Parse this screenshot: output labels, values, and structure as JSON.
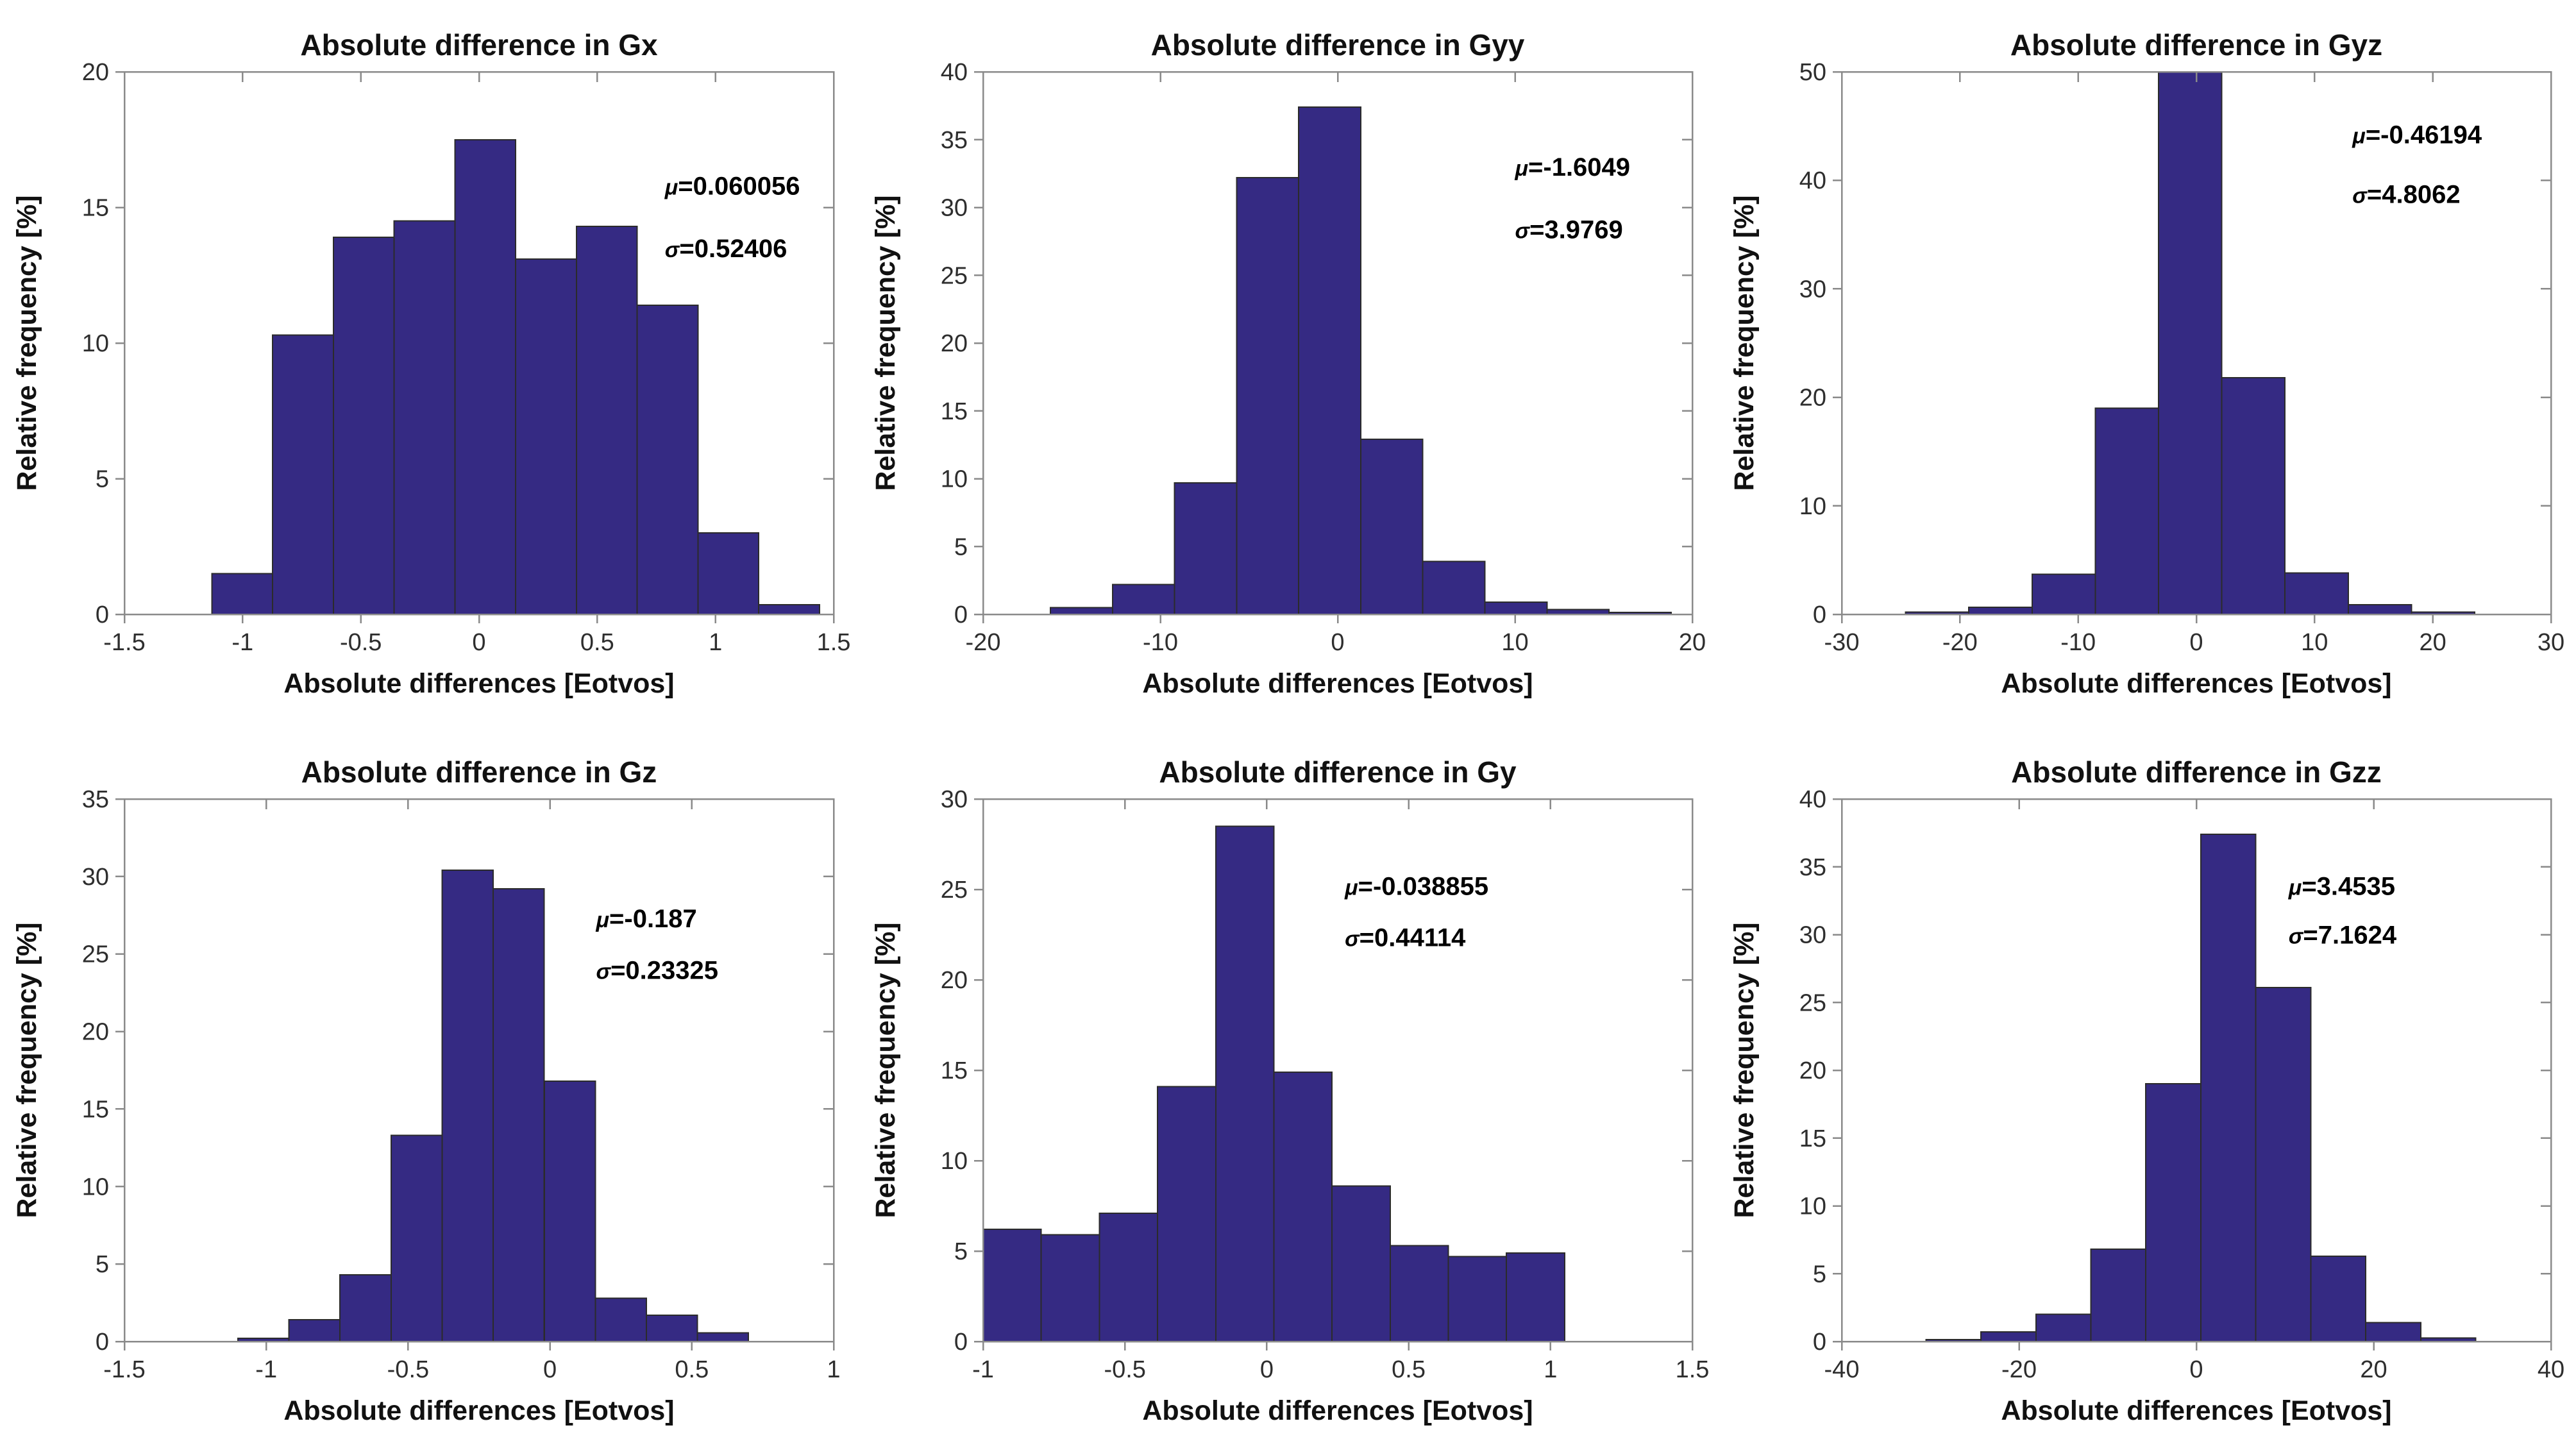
{
  "figure": {
    "background": "#ffffff",
    "grid": {
      "rows": 2,
      "cols": 3
    }
  },
  "colors": {
    "bar_fill": "#352a83",
    "bar_edge": "#2b2b2b",
    "frame": "#8a8a8a",
    "title_text": "#111111",
    "label_text": "#111111",
    "tick_text": "#2e2e2e",
    "annotation_text": "#000000"
  },
  "chart_data": [
    {
      "id": "gx",
      "type": "bar",
      "title": "Absolute difference in Gx",
      "xlabel": "Absolute differences [Eotvos]",
      "ylabel": "Relative frequency  [%]",
      "mu_greek": "μ",
      "mu_text": "=0.060056",
      "sigma_greek": "σ",
      "sigma_text": "=0.52406",
      "xlim": [
        -1.5,
        1.5
      ],
      "ylim": [
        0,
        20
      ],
      "xticks": [
        -1.5,
        -1,
        -0.5,
        0,
        0.5,
        1,
        1.5
      ],
      "xtick_labels": [
        "-1.5",
        "-1",
        "-0.5",
        "0",
        "0.5",
        "1",
        "1.5"
      ],
      "yticks": [
        0,
        5,
        10,
        15,
        20
      ],
      "ytick_labels": [
        "0",
        "5",
        "10",
        "15",
        "20"
      ],
      "bins": {
        "start": -1.13,
        "width": 0.257
      },
      "values": [
        1.5,
        10.3,
        13.9,
        14.5,
        17.5,
        13.1,
        14.3,
        11.4,
        3.0,
        0.35
      ],
      "legend": "none",
      "grid_on": false,
      "annotation_pos": {
        "x_frac": 0.762,
        "mu_y_frac": 0.21,
        "sigma_y_frac": 0.325
      }
    },
    {
      "id": "gyy",
      "type": "bar",
      "title": "Absolute difference in Gyy",
      "xlabel": "Absolute differences [Eotvos]",
      "ylabel": "Relative frequency  [%]",
      "mu_greek": "μ",
      "mu_text": "=-1.6049",
      "sigma_greek": "σ",
      "sigma_text": "=3.9769",
      "xlim": [
        -20,
        20
      ],
      "ylim": [
        0,
        40
      ],
      "xticks": [
        -20,
        -10,
        0,
        10,
        20
      ],
      "xtick_labels": [
        "-20",
        "-10",
        "0",
        "10",
        "20"
      ],
      "yticks": [
        0,
        5,
        10,
        15,
        20,
        25,
        30,
        35,
        40
      ],
      "ytick_labels": [
        "0",
        "5",
        "10",
        "15",
        "20",
        "25",
        "30",
        "35",
        "40"
      ],
      "bins": {
        "start": -16.2,
        "width": 3.5
      },
      "values": [
        0.5,
        2.2,
        9.7,
        32.2,
        37.4,
        12.9,
        3.9,
        0.9,
        0.35,
        0.15
      ],
      "legend": "none",
      "grid_on": false,
      "annotation_pos": {
        "x_frac": 0.75,
        "mu_y_frac": 0.175,
        "sigma_y_frac": 0.29
      }
    },
    {
      "id": "gyz",
      "type": "bar",
      "title": "Absolute difference in Gyz",
      "xlabel": "Absolute differences [Eotvos]",
      "ylabel": "Relative frequency  [%]",
      "mu_greek": "μ",
      "mu_text": "=-0.46194",
      "sigma_greek": "σ",
      "sigma_text": "=4.8062",
      "xlim": [
        -30,
        30
      ],
      "ylim": [
        0,
        50
      ],
      "xticks": [
        -30,
        -20,
        -10,
        0,
        10,
        20,
        30
      ],
      "xtick_labels": [
        "-30",
        "-20",
        "-10",
        "0",
        "10",
        "20",
        "30"
      ],
      "yticks": [
        0,
        10,
        20,
        30,
        40,
        50
      ],
      "ytick_labels": [
        "0",
        "10",
        "20",
        "30",
        "40",
        "50"
      ],
      "bins": {
        "start": -24.6,
        "width": 5.35
      },
      "values": [
        0.2,
        0.65,
        3.7,
        19.0,
        50.0,
        21.8,
        3.8,
        0.9,
        0.2
      ],
      "legend": "none",
      "grid_on": false,
      "annotation_pos": {
        "x_frac": 0.72,
        "mu_y_frac": 0.115,
        "sigma_y_frac": 0.225
      }
    },
    {
      "id": "gz",
      "type": "bar",
      "title": "Absolute difference in Gz",
      "xlabel": "Absolute differences [Eotvos]",
      "ylabel": "Relative frequency  [%]",
      "mu_greek": "μ",
      "mu_text": "=-0.187",
      "sigma_greek": "σ",
      "sigma_text": "=0.23325",
      "xlim": [
        -1.5,
        1
      ],
      "ylim": [
        0,
        35
      ],
      "xticks": [
        -1.5,
        -1,
        -0.5,
        0,
        0.5,
        1
      ],
      "xtick_labels": [
        "-1.5",
        "-1",
        "-0.5",
        "0",
        "0.5",
        "1"
      ],
      "yticks": [
        0,
        5,
        10,
        15,
        20,
        25,
        30,
        35
      ],
      "ytick_labels": [
        "0",
        "5",
        "10",
        "15",
        "20",
        "25",
        "30",
        "35"
      ],
      "bins": {
        "start": -1.1,
        "width": 0.18
      },
      "values": [
        0.2,
        1.4,
        4.3,
        13.3,
        30.4,
        29.2,
        16.8,
        2.8,
        1.7,
        0.55
      ],
      "legend": "none",
      "grid_on": false,
      "annotation_pos": {
        "x_frac": 0.665,
        "mu_y_frac": 0.22,
        "sigma_y_frac": 0.315
      }
    },
    {
      "id": "gy",
      "type": "bar",
      "title": "Absolute difference in Gy",
      "xlabel": "Absolute differences [Eotvos]",
      "ylabel": "Relative frequency  [%]",
      "mu_greek": "μ",
      "mu_text": "=-0.038855",
      "sigma_greek": "σ",
      "sigma_text": "=0.44114",
      "xlim": [
        -1,
        1.5
      ],
      "ylim": [
        0,
        30
      ],
      "xticks": [
        -1,
        -0.5,
        0,
        0.5,
        1,
        1.5
      ],
      "xtick_labels": [
        "-1",
        "-0.5",
        "0",
        "0.5",
        "1",
        "1.5"
      ],
      "yticks": [
        0,
        5,
        10,
        15,
        20,
        25,
        30
      ],
      "ytick_labels": [
        "0",
        "5",
        "10",
        "15",
        "20",
        "25",
        "30"
      ],
      "bins": {
        "start": -1.0,
        "width": 0.205
      },
      "values": [
        6.2,
        5.9,
        7.1,
        14.1,
        28.5,
        14.9,
        8.6,
        5.3,
        4.7,
        4.9
      ],
      "legend": "none",
      "grid_on": false,
      "annotation_pos": {
        "x_frac": 0.51,
        "mu_y_frac": 0.16,
        "sigma_y_frac": 0.255
      }
    },
    {
      "id": "gzz",
      "type": "bar",
      "title": "Absolute difference in Gzz",
      "xlabel": "Absolute differences [Eotvos]",
      "ylabel": "Relative frequency  [%]",
      "mu_greek": "μ",
      "mu_text": "=3.4535",
      "sigma_greek": "σ",
      "sigma_text": "=7.1624",
      "xlim": [
        -40,
        40
      ],
      "ylim": [
        0,
        40
      ],
      "xticks": [
        -40,
        -20,
        0,
        20,
        40
      ],
      "xtick_labels": [
        "-40",
        "-20",
        "0",
        "20",
        "40"
      ],
      "yticks": [
        0,
        5,
        10,
        15,
        20,
        25,
        30,
        35,
        40
      ],
      "ytick_labels": [
        "0",
        "5",
        "10",
        "15",
        "20",
        "25",
        "30",
        "35",
        "40"
      ],
      "bins": {
        "start": -30.5,
        "width": 6.2
      },
      "values": [
        0.15,
        0.7,
        2.0,
        6.8,
        19.0,
        37.4,
        26.1,
        6.3,
        1.4,
        0.25
      ],
      "legend": "none",
      "grid_on": false,
      "annotation_pos": {
        "x_frac": 0.63,
        "mu_y_frac": 0.16,
        "sigma_y_frac": 0.25
      }
    }
  ]
}
